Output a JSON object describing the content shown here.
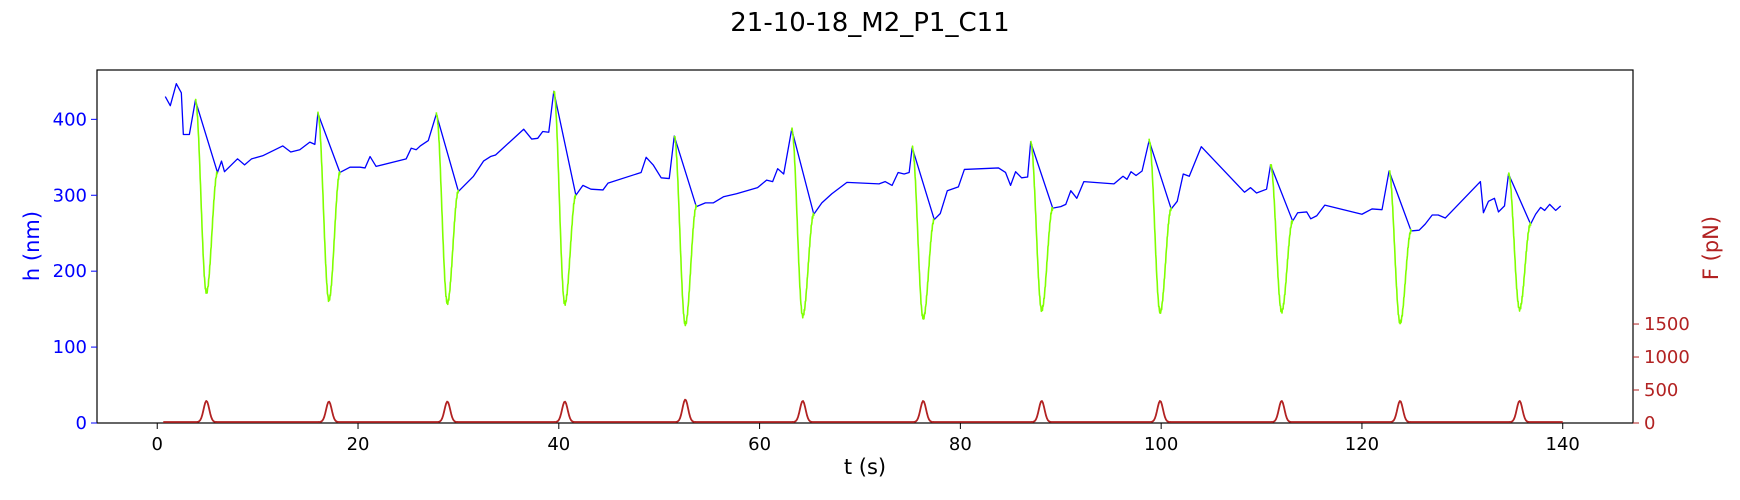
{
  "chart_data": {
    "type": "line",
    "title": "21-10-18_M2_P1_C11",
    "xlabel": "t (s)",
    "ylabel_left": "h (nm)",
    "ylabel_right": "F (pN)",
    "xlim": [
      -6,
      147
    ],
    "ylim_left": [
      0,
      465
    ],
    "ylim_right": [
      0,
      5350
    ],
    "xticks": [
      0,
      20,
      40,
      60,
      80,
      100,
      120,
      140
    ],
    "yticks_left": [
      0,
      100,
      200,
      300,
      400
    ],
    "yticks_right": [
      0,
      500,
      1000,
      1500
    ],
    "colors": {
      "height_trace": "#0000ff",
      "compression_segments": "#7fff00",
      "force_trace": "#b22222",
      "left_axis": "#0000ff",
      "right_axis": "#b22222"
    },
    "grid": false,
    "cycles": [
      {
        "t_start": 3.8,
        "t_min": 4.9,
        "t_end": 6.0,
        "h_start": 425,
        "h_min": 172,
        "h_end": 330,
        "peak_force": 320
      },
      {
        "t_start": 16.0,
        "t_min": 17.1,
        "t_end": 18.2,
        "h_start": 408,
        "h_min": 162,
        "h_end": 330,
        "peak_force": 310
      },
      {
        "t_start": 27.8,
        "t_min": 28.9,
        "t_end": 30.0,
        "h_start": 407,
        "h_min": 158,
        "h_end": 305,
        "peak_force": 310
      },
      {
        "t_start": 39.5,
        "t_min": 40.6,
        "t_end": 41.7,
        "h_start": 437,
        "h_min": 157,
        "h_end": 300,
        "peak_force": 310
      },
      {
        "t_start": 51.5,
        "t_min": 52.6,
        "t_end": 53.7,
        "h_start": 378,
        "h_min": 130,
        "h_end": 285,
        "peak_force": 340
      },
      {
        "t_start": 63.2,
        "t_min": 64.3,
        "t_end": 65.4,
        "h_start": 387,
        "h_min": 141,
        "h_end": 275,
        "peak_force": 320
      },
      {
        "t_start": 75.2,
        "t_min": 76.3,
        "t_end": 77.4,
        "h_start": 363,
        "h_min": 138,
        "h_end": 268,
        "peak_force": 320
      },
      {
        "t_start": 87.0,
        "t_min": 88.1,
        "t_end": 89.2,
        "h_start": 370,
        "h_min": 149,
        "h_end": 283,
        "peak_force": 320
      },
      {
        "t_start": 98.8,
        "t_min": 99.9,
        "t_end": 101.0,
        "h_start": 372,
        "h_min": 146,
        "h_end": 282,
        "peak_force": 320
      },
      {
        "t_start": 110.9,
        "t_min": 112.0,
        "t_end": 113.1,
        "h_start": 340,
        "h_min": 147,
        "h_end": 266,
        "peak_force": 320
      },
      {
        "t_start": 122.7,
        "t_min": 123.8,
        "t_end": 124.9,
        "h_start": 332,
        "h_min": 132,
        "h_end": 253,
        "peak_force": 320
      },
      {
        "t_start": 134.6,
        "t_min": 135.7,
        "t_end": 136.8,
        "h_start": 328,
        "h_min": 150,
        "h_end": 262,
        "peak_force": 320
      }
    ],
    "series": [
      {
        "name": "h (nm)",
        "axis": "left",
        "color": "#0000ff",
        "points": [
          [
            0.8,
            430
          ],
          [
            1.3,
            418
          ],
          [
            1.9,
            447
          ],
          [
            2.4,
            435
          ],
          [
            2.6,
            380
          ],
          [
            3.2,
            380
          ],
          [
            3.8,
            425
          ],
          [
            6.0,
            330
          ],
          [
            6.4,
            345
          ],
          [
            6.7,
            331
          ],
          [
            8.0,
            348
          ],
          [
            8.7,
            340
          ],
          [
            9.4,
            348
          ],
          [
            10.5,
            352
          ],
          [
            12.5,
            365
          ],
          [
            13.3,
            357
          ],
          [
            14.2,
            360
          ],
          [
            15.2,
            370
          ],
          [
            15.7,
            367
          ],
          [
            16.0,
            408
          ],
          [
            18.2,
            330
          ],
          [
            19.2,
            337
          ],
          [
            20.2,
            337
          ],
          [
            20.7,
            336
          ],
          [
            21.2,
            351
          ],
          [
            21.8,
            338
          ],
          [
            24.8,
            348
          ],
          [
            25.3,
            362
          ],
          [
            25.8,
            360
          ],
          [
            26.2,
            365
          ],
          [
            27.0,
            372
          ],
          [
            27.8,
            407
          ],
          [
            30.0,
            305
          ],
          [
            31.5,
            325
          ],
          [
            32.5,
            345
          ],
          [
            33.2,
            351
          ],
          [
            33.7,
            353
          ],
          [
            36.5,
            387
          ],
          [
            37.3,
            374
          ],
          [
            37.9,
            375
          ],
          [
            38.4,
            384
          ],
          [
            39.0,
            383
          ],
          [
            39.5,
            437
          ],
          [
            41.7,
            300
          ],
          [
            42.4,
            313
          ],
          [
            43.2,
            308
          ],
          [
            44.4,
            307
          ],
          [
            44.9,
            316
          ],
          [
            48.2,
            330
          ],
          [
            48.7,
            350
          ],
          [
            49.4,
            340
          ],
          [
            50.2,
            323
          ],
          [
            51.0,
            322
          ],
          [
            51.5,
            378
          ],
          [
            53.7,
            285
          ],
          [
            54.6,
            290
          ],
          [
            55.4,
            290
          ],
          [
            56.4,
            298
          ],
          [
            57.7,
            302
          ],
          [
            59.8,
            310
          ],
          [
            60.7,
            320
          ],
          [
            61.3,
            318
          ],
          [
            61.8,
            335
          ],
          [
            62.4,
            328
          ],
          [
            63.2,
            387
          ],
          [
            65.4,
            275
          ],
          [
            66.2,
            290
          ],
          [
            67.2,
            302
          ],
          [
            68.7,
            317
          ],
          [
            71.9,
            315
          ],
          [
            72.5,
            318
          ],
          [
            73.2,
            313
          ],
          [
            73.8,
            330
          ],
          [
            74.4,
            328
          ],
          [
            74.9,
            330
          ],
          [
            75.2,
            363
          ],
          [
            77.4,
            268
          ],
          [
            78.0,
            276
          ],
          [
            78.7,
            306
          ],
          [
            79.8,
            311
          ],
          [
            80.4,
            334
          ],
          [
            83.8,
            336
          ],
          [
            84.5,
            330
          ],
          [
            85.0,
            313
          ],
          [
            85.5,
            331
          ],
          [
            86.1,
            323
          ],
          [
            86.7,
            324
          ],
          [
            87.0,
            370
          ],
          [
            89.2,
            283
          ],
          [
            90.0,
            285
          ],
          [
            90.5,
            288
          ],
          [
            91.0,
            306
          ],
          [
            91.6,
            296
          ],
          [
            92.3,
            318
          ],
          [
            95.3,
            315
          ],
          [
            96.2,
            325
          ],
          [
            96.6,
            321
          ],
          [
            97.0,
            331
          ],
          [
            97.5,
            326
          ],
          [
            98.1,
            332
          ],
          [
            98.8,
            372
          ],
          [
            101.0,
            282
          ],
          [
            101.6,
            292
          ],
          [
            102.2,
            328
          ],
          [
            102.8,
            325
          ],
          [
            104.0,
            364
          ],
          [
            108.3,
            304
          ],
          [
            108.9,
            310
          ],
          [
            109.5,
            303
          ],
          [
            110.5,
            308
          ],
          [
            110.9,
            340
          ],
          [
            113.1,
            266
          ],
          [
            113.6,
            277
          ],
          [
            114.5,
            278
          ],
          [
            114.9,
            269
          ],
          [
            115.5,
            273
          ],
          [
            116.3,
            287
          ],
          [
            120.0,
            275
          ],
          [
            121.0,
            282
          ],
          [
            122.0,
            281
          ],
          [
            122.7,
            332
          ],
          [
            124.9,
            253
          ],
          [
            125.7,
            254
          ],
          [
            126.3,
            262
          ],
          [
            127.0,
            274
          ],
          [
            127.6,
            274
          ],
          [
            128.3,
            270
          ],
          [
            131.8,
            318
          ],
          [
            132.1,
            277
          ],
          [
            132.6,
            292
          ],
          [
            133.2,
            296
          ],
          [
            133.6,
            278
          ],
          [
            134.2,
            286
          ],
          [
            134.6,
            328
          ],
          [
            136.8,
            262
          ],
          [
            137.3,
            275
          ],
          [
            137.8,
            284
          ],
          [
            138.2,
            280
          ],
          [
            138.7,
            288
          ],
          [
            139.3,
            280
          ],
          [
            139.8,
            286
          ]
        ]
      },
      {
        "name": "F (pN)",
        "axis": "right",
        "color": "#b22222",
        "baseline": 15,
        "t_range": [
          0.6,
          140.0
        ]
      }
    ]
  }
}
